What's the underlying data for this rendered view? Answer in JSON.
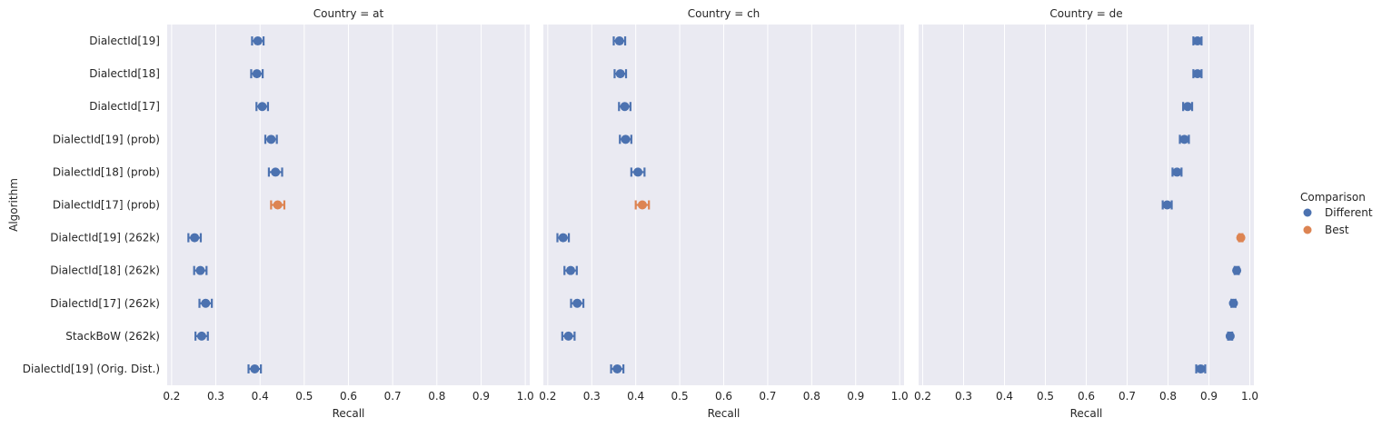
{
  "chart_data": {
    "type": "scatter",
    "facet_titles": [
      "Country = at",
      "Country = ch",
      "Country = de"
    ],
    "ylabel": "Algorithm",
    "xlabel": "Recall",
    "categories": [
      "DialectId[19]",
      "DialectId[18]",
      "DialectId[17]",
      "DialectId[19] (prob)",
      "DialectId[18] (prob)",
      "DialectId[17] (prob)",
      "DialectId[19] (262k)",
      "DialectId[18] (262k)",
      "DialectId[17] (262k)",
      "StackBoW (262k)",
      "DialectId[19] (Orig. Dist.)"
    ],
    "xlim": [
      0.19,
      1.01
    ],
    "xticks": [
      0.2,
      0.3,
      0.4,
      0.5,
      0.6,
      0.7,
      0.8,
      0.9,
      1.0
    ],
    "xtick_labels": [
      "0.2",
      "0.3",
      "0.4",
      "0.5",
      "0.6",
      "0.7",
      "0.8",
      "0.9",
      "1.0"
    ],
    "grid": true,
    "legend": {
      "title": "Comparison",
      "position": "right",
      "entries": [
        {
          "label": "Different",
          "color": "#4c72b0"
        },
        {
          "label": "Best",
          "color": "#dd8452"
        }
      ]
    },
    "panels": [
      {
        "country": "at",
        "points": [
          {
            "value": 0.395,
            "err": [
              0.382,
              0.408
            ],
            "group": "Different"
          },
          {
            "value": 0.393,
            "err": [
              0.38,
              0.406
            ],
            "group": "Different"
          },
          {
            "value": 0.405,
            "err": [
              0.392,
              0.418
            ],
            "group": "Different"
          },
          {
            "value": 0.425,
            "err": [
              0.412,
              0.438
            ],
            "group": "Different"
          },
          {
            "value": 0.435,
            "err": [
              0.42,
              0.45
            ],
            "group": "Different"
          },
          {
            "value": 0.44,
            "err": [
              0.425,
              0.455
            ],
            "group": "Best"
          },
          {
            "value": 0.252,
            "err": [
              0.238,
              0.266
            ],
            "group": "Different"
          },
          {
            "value": 0.265,
            "err": [
              0.251,
              0.279
            ],
            "group": "Different"
          },
          {
            "value": 0.277,
            "err": [
              0.263,
              0.291
            ],
            "group": "Different"
          },
          {
            "value": 0.268,
            "err": [
              0.254,
              0.282
            ],
            "group": "Different"
          },
          {
            "value": 0.388,
            "err": [
              0.374,
              0.402
            ],
            "group": "Different"
          }
        ]
      },
      {
        "country": "ch",
        "points": [
          {
            "value": 0.363,
            "err": [
              0.35,
              0.376
            ],
            "group": "Different"
          },
          {
            "value": 0.365,
            "err": [
              0.352,
              0.378
            ],
            "group": "Different"
          },
          {
            "value": 0.375,
            "err": [
              0.362,
              0.388
            ],
            "group": "Different"
          },
          {
            "value": 0.377,
            "err": [
              0.364,
              0.39
            ],
            "group": "Different"
          },
          {
            "value": 0.405,
            "err": [
              0.39,
              0.42
            ],
            "group": "Different"
          },
          {
            "value": 0.415,
            "err": [
              0.4,
              0.43
            ],
            "group": "Best"
          },
          {
            "value": 0.235,
            "err": [
              0.222,
              0.248
            ],
            "group": "Different"
          },
          {
            "value": 0.252,
            "err": [
              0.238,
              0.266
            ],
            "group": "Different"
          },
          {
            "value": 0.267,
            "err": [
              0.253,
              0.281
            ],
            "group": "Different"
          },
          {
            "value": 0.247,
            "err": [
              0.233,
              0.261
            ],
            "group": "Different"
          },
          {
            "value": 0.358,
            "err": [
              0.344,
              0.372
            ],
            "group": "Different"
          }
        ]
      },
      {
        "country": "de",
        "points": [
          {
            "value": 0.872,
            "err": [
              0.862,
              0.882
            ],
            "group": "Different"
          },
          {
            "value": 0.872,
            "err": [
              0.862,
              0.882
            ],
            "group": "Different"
          },
          {
            "value": 0.848,
            "err": [
              0.837,
              0.859
            ],
            "group": "Different"
          },
          {
            "value": 0.84,
            "err": [
              0.829,
              0.851
            ],
            "group": "Different"
          },
          {
            "value": 0.822,
            "err": [
              0.811,
              0.833
            ],
            "group": "Different"
          },
          {
            "value": 0.798,
            "err": [
              0.787,
              0.809
            ],
            "group": "Different"
          },
          {
            "value": 0.978,
            "err": [
              0.974,
              0.982
            ],
            "group": "Best"
          },
          {
            "value": 0.968,
            "err": [
              0.963,
              0.973
            ],
            "group": "Different"
          },
          {
            "value": 0.96,
            "err": [
              0.955,
              0.965
            ],
            "group": "Different"
          },
          {
            "value": 0.952,
            "err": [
              0.947,
              0.957
            ],
            "group": "Different"
          },
          {
            "value": 0.88,
            "err": [
              0.869,
              0.891
            ],
            "group": "Different"
          }
        ]
      }
    ]
  }
}
